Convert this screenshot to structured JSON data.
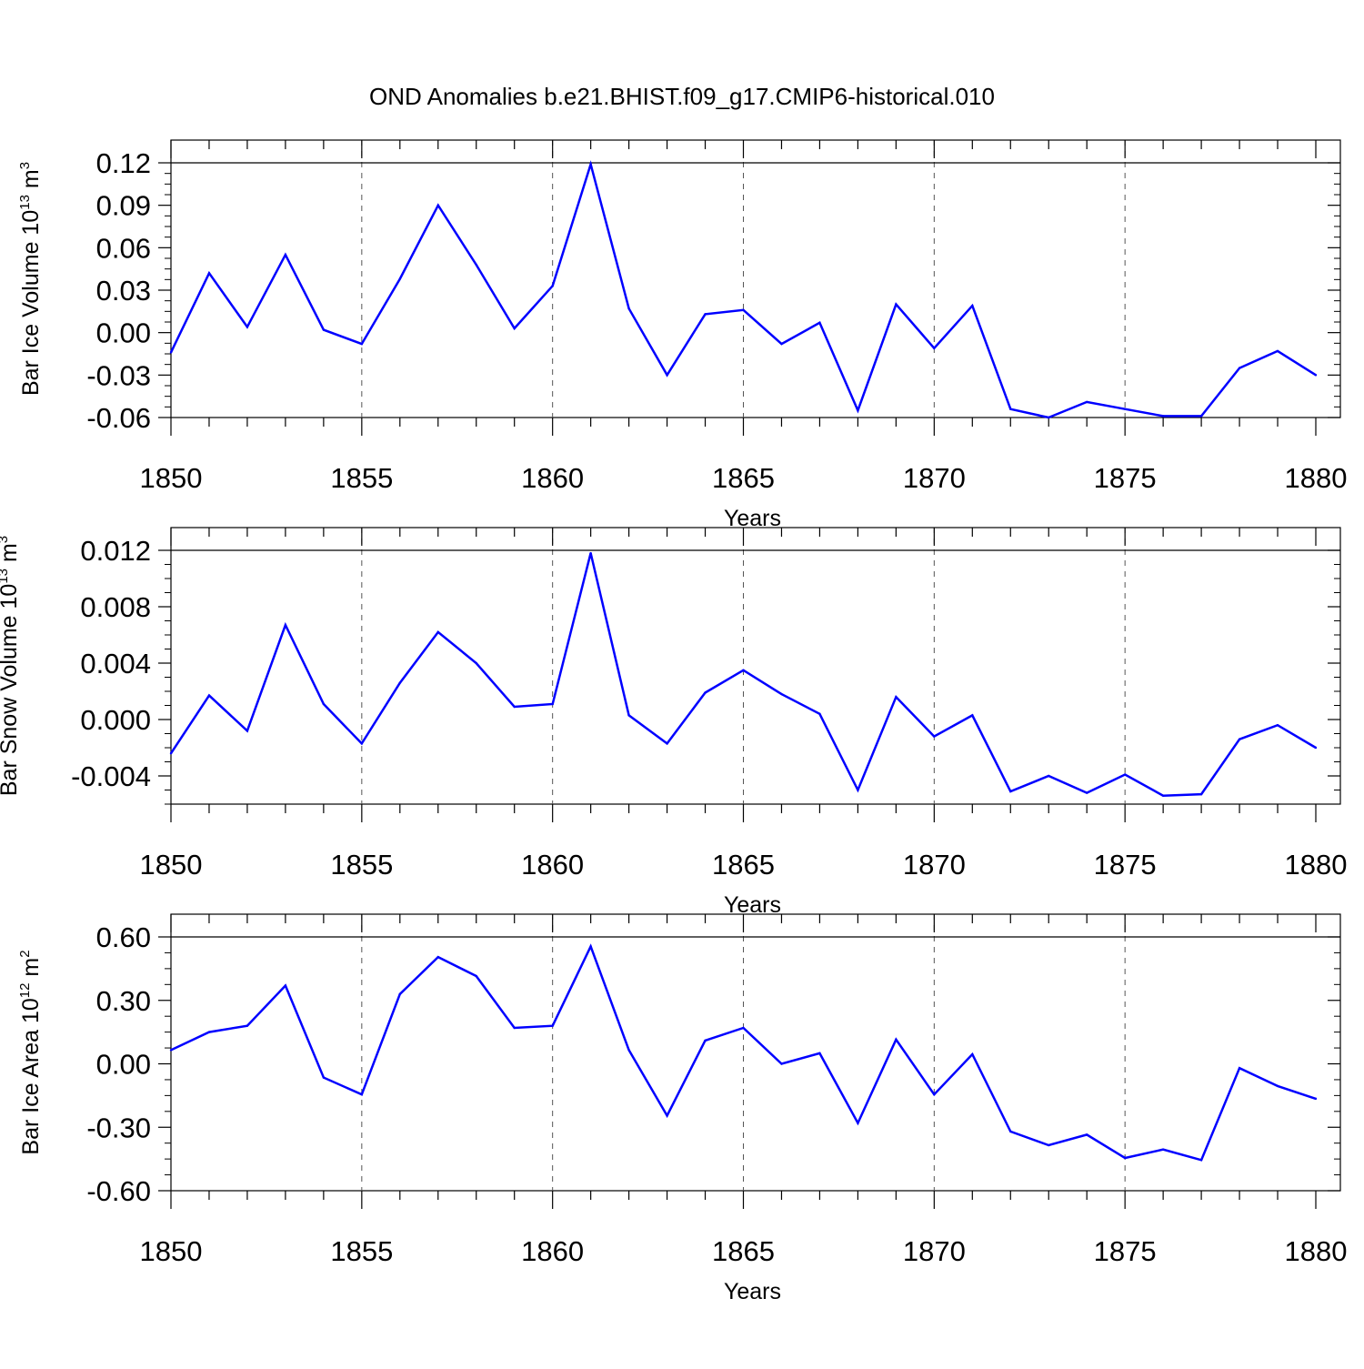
{
  "title": "OND Anomalies b.e21.BHIST.f09_g17.CMIP6-historical.010",
  "colors": {
    "series": "#0000ff",
    "axis": "#000000",
    "grid": "#555555"
  },
  "chart_data": [
    {
      "type": "line",
      "name": "bar-ice-volume",
      "ylabel_main": "Bar Ice Volume 10",
      "ylabel_sup1": "13",
      "ylabel_unit": " m",
      "ylabel_sup2": "3",
      "xlabel": "Years",
      "xlim": [
        1850,
        1880
      ],
      "ylim": [
        -0.06,
        0.12
      ],
      "xticks": [
        1850,
        1855,
        1860,
        1865,
        1870,
        1875,
        1880
      ],
      "yticks": [
        -0.06,
        -0.03,
        0.0,
        0.03,
        0.06,
        0.09,
        0.12
      ],
      "ytick_labels": [
        "-0.06",
        "-0.03",
        "0.00",
        "0.03",
        "0.06",
        "0.09",
        "0.12"
      ],
      "grid_x": [
        1855,
        1860,
        1865,
        1870,
        1875
      ],
      "x": [
        1850,
        1851,
        1852,
        1853,
        1854,
        1855,
        1856,
        1857,
        1858,
        1859,
        1860,
        1861,
        1862,
        1863,
        1864,
        1865,
        1866,
        1867,
        1868,
        1869,
        1870,
        1871,
        1872,
        1873,
        1874,
        1875,
        1876,
        1877,
        1878,
        1879,
        1880
      ],
      "y": [
        -0.014,
        0.042,
        0.004,
        0.055,
        0.002,
        -0.008,
        0.038,
        0.09,
        0.048,
        0.003,
        0.033,
        0.119,
        0.017,
        -0.03,
        0.013,
        0.016,
        -0.008,
        0.007,
        -0.055,
        0.02,
        -0.011,
        0.019,
        -0.054,
        -0.06,
        -0.049,
        -0.054,
        -0.059,
        -0.059,
        -0.025,
        -0.013,
        -0.03
      ]
    },
    {
      "type": "line",
      "name": "bar-snow-volume",
      "ylabel_main": "Bar Snow Volume 10",
      "ylabel_sup1": "13",
      "ylabel_unit": " m",
      "ylabel_sup2": "3",
      "xlabel": "Years",
      "xlim": [
        1850,
        1880
      ],
      "ylim": [
        -0.006,
        0.012
      ],
      "xticks": [
        1850,
        1855,
        1860,
        1865,
        1870,
        1875,
        1880
      ],
      "yticks": [
        -0.004,
        0.0,
        0.004,
        0.008,
        0.012
      ],
      "ytick_labels": [
        "-0.004",
        "0.000",
        "0.004",
        "0.008",
        "0.012"
      ],
      "grid_x": [
        1855,
        1860,
        1865,
        1870,
        1875
      ],
      "x": [
        1850,
        1851,
        1852,
        1853,
        1854,
        1855,
        1856,
        1857,
        1858,
        1859,
        1860,
        1861,
        1862,
        1863,
        1864,
        1865,
        1866,
        1867,
        1868,
        1869,
        1870,
        1871,
        1872,
        1873,
        1874,
        1875,
        1876,
        1877,
        1878,
        1879,
        1880
      ],
      "y": [
        -0.0024,
        0.0017,
        -0.0008,
        0.0067,
        0.0011,
        -0.0017,
        0.0026,
        0.0062,
        0.004,
        0.0009,
        0.0011,
        0.0118,
        0.0003,
        -0.0017,
        0.0019,
        0.0035,
        0.0018,
        0.0004,
        -0.005,
        0.0016,
        -0.0012,
        0.0003,
        -0.0051,
        -0.004,
        -0.0052,
        -0.0039,
        -0.0054,
        -0.0053,
        -0.0014,
        -0.0004,
        -0.002
      ]
    },
    {
      "type": "line",
      "name": "bar-ice-area",
      "ylabel_main": "Bar Ice Area 10",
      "ylabel_sup1": "12",
      "ylabel_unit": " m",
      "ylabel_sup2": "2",
      "xlabel": "Years",
      "xlim": [
        1850,
        1880
      ],
      "ylim": [
        -0.6,
        0.6
      ],
      "xticks": [
        1850,
        1855,
        1860,
        1865,
        1870,
        1875,
        1880
      ],
      "yticks": [
        -0.6,
        -0.3,
        0.0,
        0.3,
        0.6
      ],
      "ytick_labels": [
        "-0.60",
        "-0.30",
        "0.00",
        "0.30",
        "0.60"
      ],
      "grid_x": [
        1855,
        1860,
        1865,
        1870,
        1875
      ],
      "x": [
        1850,
        1851,
        1852,
        1853,
        1854,
        1855,
        1856,
        1857,
        1858,
        1859,
        1860,
        1861,
        1862,
        1863,
        1864,
        1865,
        1866,
        1867,
        1868,
        1869,
        1870,
        1871,
        1872,
        1873,
        1874,
        1875,
        1876,
        1877,
        1878,
        1879,
        1880
      ],
      "y": [
        0.065,
        0.15,
        0.18,
        0.37,
        -0.065,
        -0.145,
        0.33,
        0.505,
        0.415,
        0.17,
        0.18,
        0.555,
        0.065,
        -0.245,
        0.11,
        0.17,
        0.0,
        0.05,
        -0.28,
        0.115,
        -0.145,
        0.045,
        -0.32,
        -0.385,
        -0.335,
        -0.445,
        -0.405,
        -0.455,
        -0.02,
        -0.105,
        -0.165
      ]
    }
  ]
}
